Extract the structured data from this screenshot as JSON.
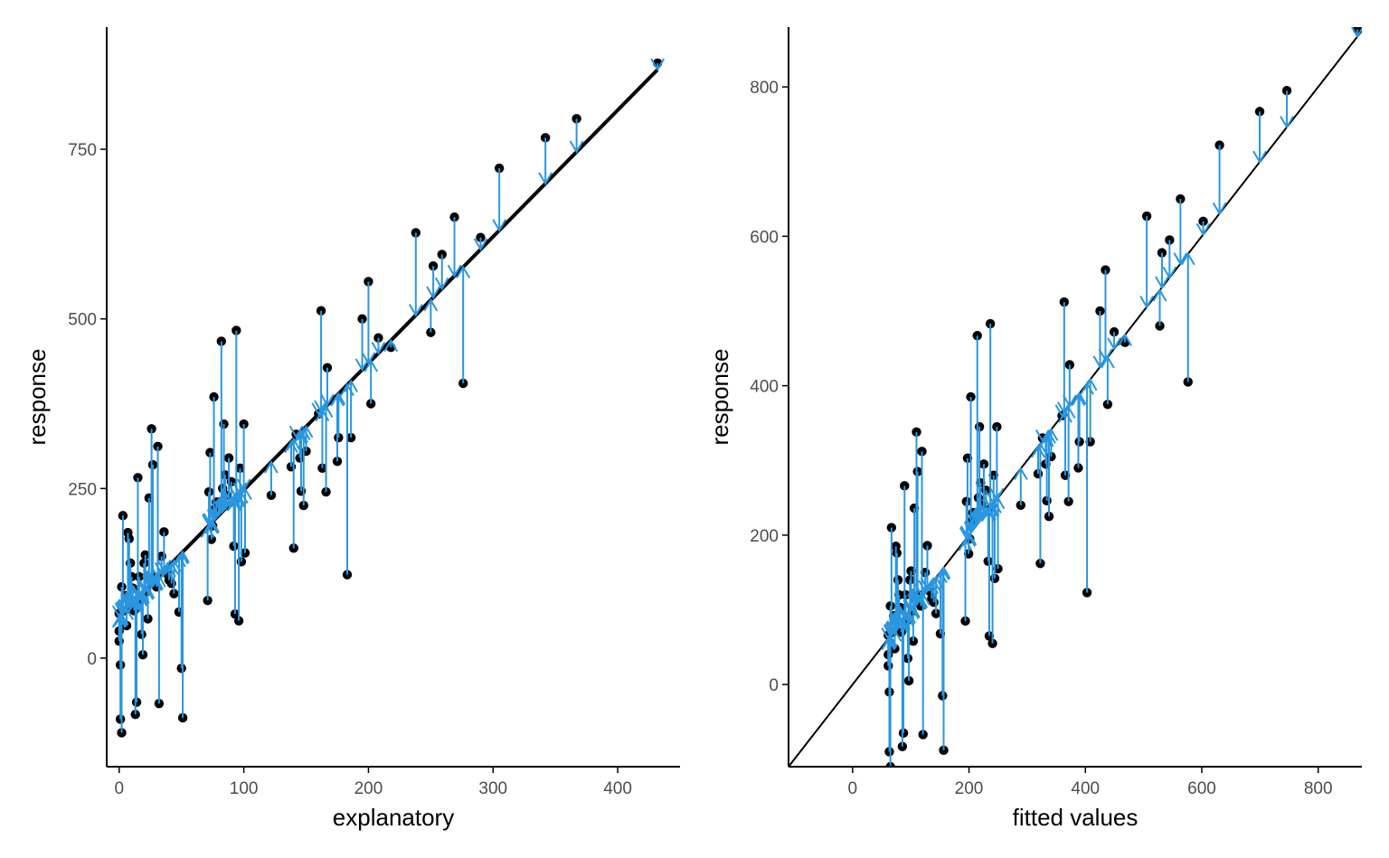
{
  "colors": {
    "point": "#000000",
    "residual": "#2a96e0",
    "line": "#000000",
    "axis": "#000000",
    "tick_text": "#4d4d4d"
  },
  "chart_data": [
    {
      "type": "scatter",
      "title": "",
      "xlabel": "explanatory",
      "ylabel": "response",
      "xlim": [
        -10,
        450
      ],
      "ylim": [
        -160,
        930
      ],
      "xticks": [
        0,
        100,
        200,
        300,
        400
      ],
      "yticks": [
        0,
        250,
        500,
        750
      ],
      "grid": false,
      "legend": "none",
      "fit_line": {
        "intercept": 61.3,
        "slope": 1.866,
        "x_range": [
          0,
          432
        ]
      },
      "points": [
        [
          0,
          66
        ],
        [
          0,
          40
        ],
        [
          0,
          25
        ],
        [
          1,
          -10
        ],
        [
          1,
          -90
        ],
        [
          2,
          -110
        ],
        [
          2,
          105
        ],
        [
          3,
          210
        ],
        [
          4,
          70
        ],
        [
          5,
          92
        ],
        [
          6,
          48
        ],
        [
          7,
          185
        ],
        [
          8,
          176
        ],
        [
          9,
          140
        ],
        [
          10,
          120
        ],
        [
          11,
          103
        ],
        [
          12,
          70
        ],
        [
          13,
          -83
        ],
        [
          14,
          -65
        ],
        [
          15,
          266
        ],
        [
          16,
          120
        ],
        [
          17,
          85
        ],
        [
          18,
          35
        ],
        [
          19,
          5
        ],
        [
          20,
          140
        ],
        [
          21,
          152
        ],
        [
          22,
          98
        ],
        [
          23,
          58
        ],
        [
          24,
          236
        ],
        [
          25,
          115
        ],
        [
          26,
          338
        ],
        [
          27,
          285
        ],
        [
          28,
          120
        ],
        [
          29,
          110
        ],
        [
          30,
          105
        ],
        [
          31,
          312
        ],
        [
          32,
          -67
        ],
        [
          34,
          150
        ],
        [
          36,
          186
        ],
        [
          38,
          125
        ],
        [
          40,
          115
        ],
        [
          42,
          110
        ],
        [
          44,
          95
        ],
        [
          48,
          68
        ],
        [
          50,
          -15
        ],
        [
          51,
          -88
        ],
        [
          71,
          85
        ],
        [
          72,
          245
        ],
        [
          73,
          303
        ],
        [
          74,
          175
        ],
        [
          75,
          195
        ],
        [
          76,
          385
        ],
        [
          77,
          220
        ],
        [
          78,
          230
        ],
        [
          80,
          230
        ],
        [
          82,
          467
        ],
        [
          83,
          250
        ],
        [
          84,
          345
        ],
        [
          85,
          270
        ],
        [
          86,
          240
        ],
        [
          88,
          295
        ],
        [
          90,
          260
        ],
        [
          92,
          165
        ],
        [
          93,
          65
        ],
        [
          94,
          483
        ],
        [
          95,
          237
        ],
        [
          96,
          55
        ],
        [
          97,
          280
        ],
        [
          98,
          142
        ],
        [
          100,
          345
        ],
        [
          101,
          155
        ],
        [
          122,
          240
        ],
        [
          138,
          282
        ],
        [
          140,
          162
        ],
        [
          142,
          330
        ],
        [
          145,
          295
        ],
        [
          146,
          246
        ],
        [
          148,
          225
        ],
        [
          150,
          305
        ],
        [
          160,
          360
        ],
        [
          162,
          512
        ],
        [
          163,
          280
        ],
        [
          166,
          245
        ],
        [
          167,
          428
        ],
        [
          175,
          290
        ],
        [
          176,
          325
        ],
        [
          183,
          123
        ],
        [
          186,
          325
        ],
        [
          195,
          500
        ],
        [
          200,
          555
        ],
        [
          202,
          375
        ],
        [
          208,
          472
        ],
        [
          218,
          458
        ],
        [
          238,
          627
        ],
        [
          250,
          480
        ],
        [
          252,
          578
        ],
        [
          259,
          595
        ],
        [
          269,
          650
        ],
        [
          276,
          405
        ],
        [
          290,
          620
        ],
        [
          305,
          722
        ],
        [
          342,
          767
        ],
        [
          367,
          795
        ],
        [
          432,
          877
        ]
      ]
    },
    {
      "type": "scatter",
      "title": "",
      "xlabel": "fitted values",
      "ylabel": "response",
      "xlim": [
        -110,
        875
      ],
      "ylim": [
        -110,
        880
      ],
      "xticks": [
        0,
        200,
        400,
        600,
        800
      ],
      "yticks": [
        0,
        200,
        400,
        600,
        800
      ],
      "grid": false,
      "legend": "none",
      "reference_line": {
        "intercept": 0,
        "slope": 1
      },
      "points": "same observations as the first panel, plotted against their fitted values"
    }
  ]
}
